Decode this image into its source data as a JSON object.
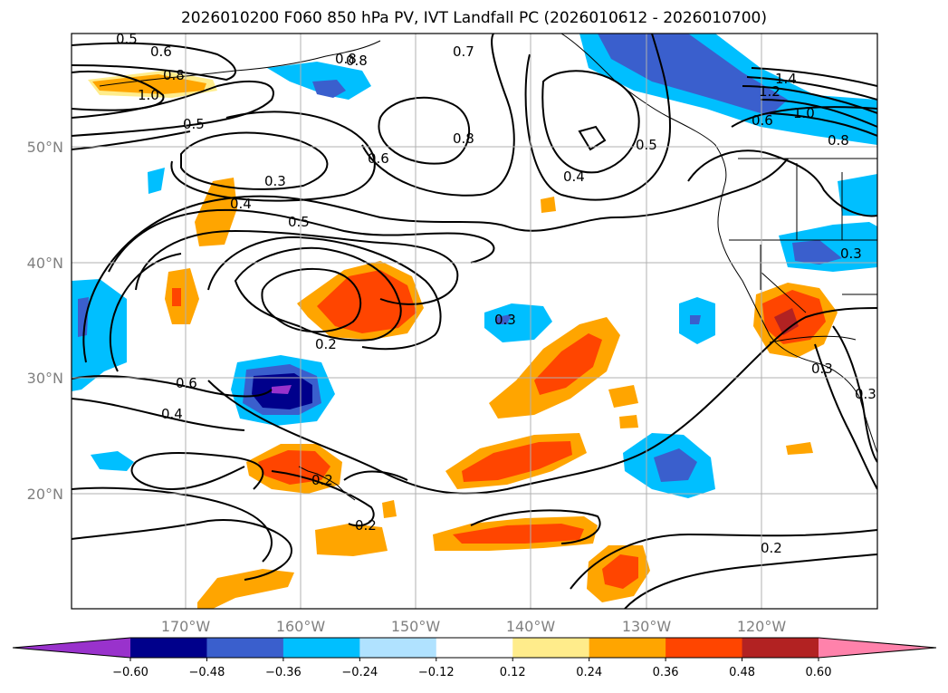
{
  "title": "2026010200 F060 850 hPa PV, IVT Landfall PC (2026010612 - 2026010700)",
  "lat_labels": [
    "50°N",
    "40°N",
    "30°N",
    "20°N"
  ],
  "lon_labels": [
    "170°W",
    "160°W",
    "150°W",
    "140°W",
    "130°W",
    "120°W"
  ],
  "colorbar": {
    "ticks": [
      "−0.60",
      "−0.48",
      "−0.36",
      "−0.24",
      "−0.12",
      "0.12",
      "0.24",
      "0.36",
      "0.48",
      "0.60"
    ],
    "colors": [
      "#9932cc",
      "#00008b",
      "#3a5fcd",
      "#00bfff",
      "#b0e2ff",
      "#ffffff",
      "#ffec8b",
      "#ffa500",
      "#ff4500",
      "#b22222",
      "#ff82ab"
    ]
  },
  "contour_labels": [
    "0.5",
    "0.6",
    "0.8",
    "0.8",
    "1.0",
    "0.5",
    "0.3",
    "0.4",
    "0.5",
    "0.6",
    "0.8",
    "0.7",
    "0.8",
    "0.4",
    "0.5",
    "0.6",
    "1.4",
    "1.2",
    "1.0",
    "0.8",
    "0.3",
    "0.2",
    "0.6",
    "0.4",
    "0.2",
    "0.2",
    "0.2",
    "0.3",
    "0.3",
    "0.3"
  ]
}
